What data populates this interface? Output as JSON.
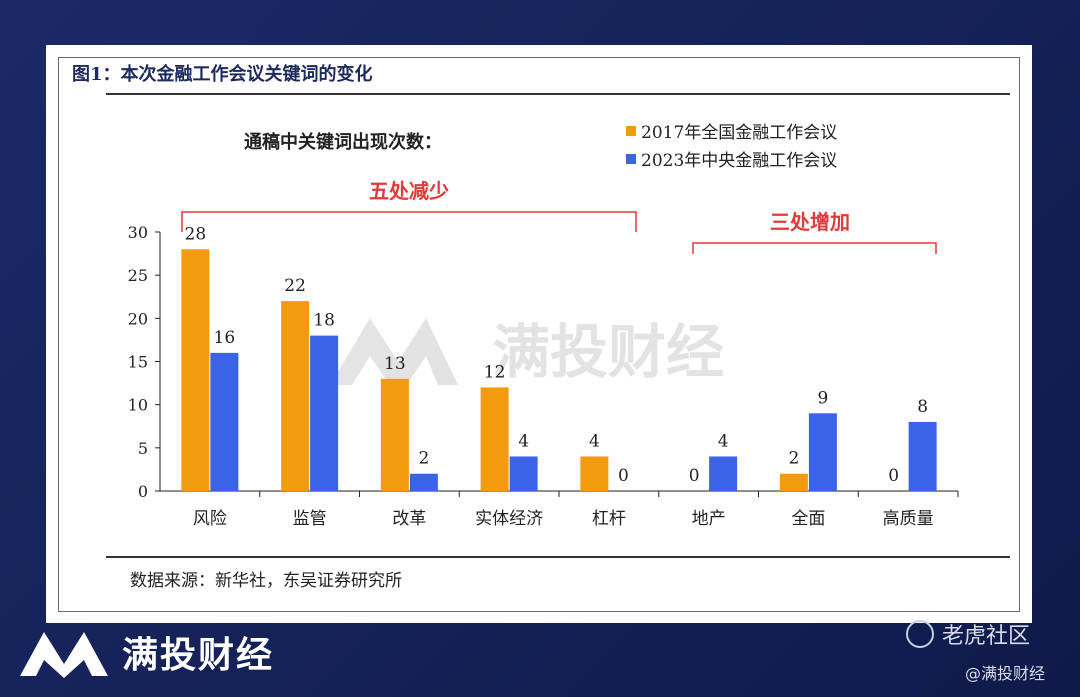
{
  "figure": {
    "title": "图1：本次金融工作会议关键词的变化",
    "source": "数据来源：新华社，东吴证券研究所"
  },
  "chart_data": {
    "type": "bar",
    "subtitle": "通稿中关键词出现次数：",
    "categories": [
      "风险",
      "监管",
      "改革",
      "实体经济",
      "杠杆",
      "地产",
      "全面",
      "高质量"
    ],
    "series": [
      {
        "name": "2017年全国金融工作会议",
        "color": "#f39b0f",
        "values": [
          28,
          22,
          13,
          12,
          4,
          0,
          2,
          0
        ]
      },
      {
        "name": "2023年中央金融工作会议",
        "color": "#3a63e6",
        "values": [
          16,
          18,
          2,
          4,
          0,
          4,
          9,
          8
        ]
      }
    ],
    "ylim": [
      0,
      30
    ],
    "yticks": [
      0,
      5,
      10,
      15,
      20,
      25,
      30
    ],
    "grid": false,
    "legend_position": "top-right",
    "annotations": [
      {
        "text": "五处减少",
        "span": [
          "风险",
          "杠杆"
        ],
        "color": "#e03a3a"
      },
      {
        "text": "三处增加",
        "span": [
          "地产",
          "高质量"
        ],
        "color": "#e03a3a"
      }
    ]
  },
  "watermark": {
    "text": "满投财经"
  },
  "footer": {
    "brand": "满投财经",
    "forum": "老虎社区",
    "handle": "@满投财经"
  },
  "colors": {
    "background": "#16235a",
    "accent_red": "#e03a3a"
  }
}
